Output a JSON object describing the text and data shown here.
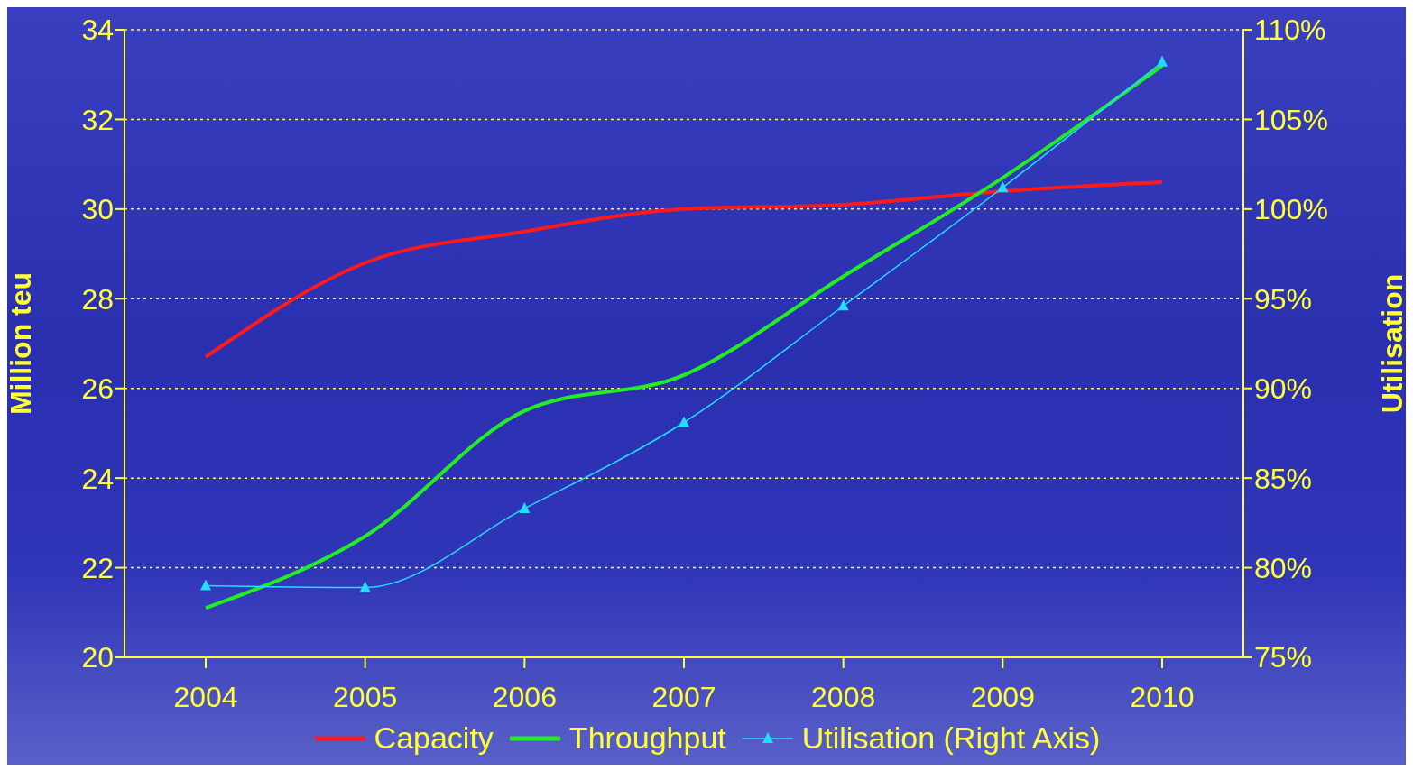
{
  "chart_data": {
    "type": "line",
    "ylabel": "Million teu",
    "y2label": "Utilisation",
    "categories": [
      "2004",
      "2005",
      "2006",
      "2007",
      "2008",
      "2009",
      "2010"
    ],
    "series": [
      {
        "name": "Capacity",
        "color": "#ff1a1a",
        "values": [
          26.7,
          28.8,
          29.5,
          30.0,
          30.1,
          30.4,
          30.6
        ]
      },
      {
        "name": "Throughput",
        "color": "#22ee22",
        "values": [
          21.1,
          22.7,
          25.5,
          26.3,
          28.5,
          30.7,
          33.2
        ]
      },
      {
        "name": "Utilisation (Right Axis)",
        "color": "#22ddff",
        "axis": "y2",
        "marker": "triangle",
        "values": [
          79.0,
          78.9,
          83.3,
          88.1,
          94.6,
          101.2,
          108.2
        ]
      }
    ],
    "ylim": [
      20,
      34
    ],
    "yticks": [
      20,
      22,
      24,
      26,
      28,
      30,
      32,
      34
    ],
    "y2lim": [
      75,
      110
    ],
    "y2ticks": [
      {
        "value": 75,
        "label": "75%"
      },
      {
        "value": 80,
        "label": "80%"
      },
      {
        "value": 85,
        "label": "85%"
      },
      {
        "value": 90,
        "label": "90%"
      },
      {
        "value": 95,
        "label": "95%"
      },
      {
        "value": 100,
        "label": "100%"
      },
      {
        "value": 105,
        "label": "105%"
      },
      {
        "value": 110,
        "label": "110%"
      }
    ],
    "grid": "y",
    "legend": "bottom",
    "line_style": "solid"
  }
}
